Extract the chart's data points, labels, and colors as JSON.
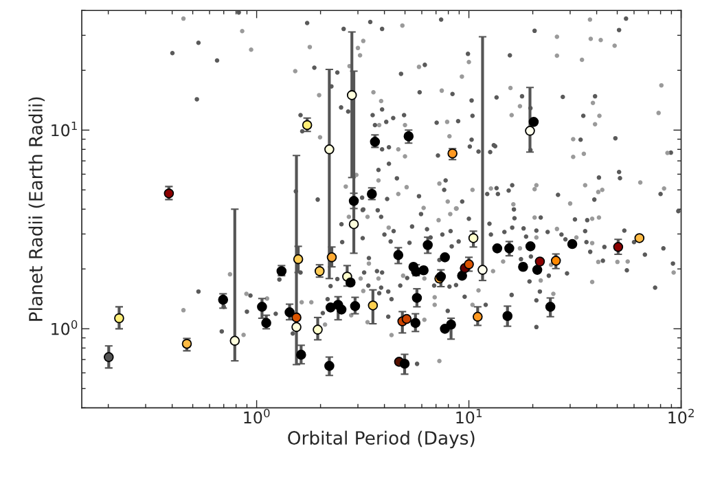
{
  "chart_data": {
    "type": "scatter",
    "xlabel": "Orbital Period (Days)",
    "ylabel": "Planet Radii (Earth Radii)",
    "log": "xy",
    "xlim": [
      0.15,
      100
    ],
    "ylim": [
      0.4,
      40
    ],
    "xticks": [
      {
        "value": 1,
        "label": "10$^{0}$"
      },
      {
        "value": 10,
        "label": "10$^{1}$"
      },
      {
        "value": 100,
        "label": "10$^{2}$"
      }
    ],
    "yticks": [
      {
        "value": 1,
        "label": "10$^{0}$"
      },
      {
        "value": 10,
        "label": "10$^{1}$"
      }
    ],
    "grid": false,
    "marker": "circle",
    "series": [
      {
        "color": "#5a5a5a",
        "x": [
          0.401,
          0.532,
          0.651,
          0.523,
          0.824,
          1.61,
          1.64,
          1.53,
          1.73,
          2.57,
          3.43,
          3.9,
          1.87,
          2.4,
          2.25,
          2.5,
          2.7,
          3.52,
          3.9,
          3.61,
          4.08,
          4.4,
          4.95,
          4.79,
          6.2,
          5.86,
          7.4,
          9.9,
          8.37,
          10.3,
          10.4,
          13.5,
          7.05,
          8.9,
          10.3,
          10.1,
          13.1,
          12.6,
          11.1,
          7.15,
          3.9,
          4.2,
          4.2,
          3.75,
          4.58,
          7.77,
          7.65,
          5.82,
          9.3,
          13.5,
          12.2,
          13.7,
          4.12,
          3.14,
          1.94,
          3.18,
          3.72,
          20.4,
          51,
          55,
          15.6,
          17.8,
          27.7,
          39.3,
          19.5,
          34.6,
          33.6,
          49,
          13.3,
          89.5,
          51,
          51.5,
          41,
          16.0,
          15.4,
          26.3,
          39,
          80,
          16.3,
          19.5,
          0.532,
          0.685,
          0.9,
          0.935,
          1.28,
          1.23,
          1.61,
          1.48,
          0.7,
          3.16,
          3.86,
          2.51,
          2.53,
          3.16,
          4.0,
          4.42,
          4.28,
          5.4,
          5.95,
          6.35,
          7.5,
          8.2,
          8.95,
          10.0,
          12.5,
          12.7,
          3.38,
          3.21,
          3.69,
          3.9,
          2.4,
          2.23,
          3.36,
          3.86,
          4.17,
          3.78,
          4.32,
          4.75,
          5.12,
          6.86,
          8.1,
          8.7,
          9.55,
          5.25,
          6.6,
          8.3,
          7.26,
          12.0,
          7.95,
          5.7,
          2.16,
          2.05,
          4.17,
          16.4,
          16.0,
          14.7,
          18.1,
          18.6,
          20.8,
          21.8,
          23.5,
          27.3,
          28.5,
          31.6,
          35.3,
          36.1,
          35.8,
          37.3,
          43.5,
          42.8,
          54,
          55.5,
          60,
          67.5,
          82.5,
          91.5,
          75.4,
          97,
          23.8,
          29,
          21.6,
          20.8,
          20.8,
          15.9,
          19.3,
          17.6,
          19.6
        ],
        "values": [
          24.4,
          27.5,
          22.4,
          14.3,
          39.1,
          11.9,
          9.86,
          4.92,
          34.6,
          32.3,
          35.0,
          32.3,
          20.6,
          19.5,
          16.6,
          13.0,
          12.4,
          11.9,
          12.7,
          10.6,
          11.0,
          11.5,
          11.9,
          19.2,
          21.3,
          15.5,
          36.0,
          24.2,
          15.2,
          14.1,
          11.8,
          14.6,
          10.9,
          11.1,
          8.95,
          8.26,
          8.4,
          7.75,
          7.8,
          7.45,
          8.0,
          8.2,
          6.77,
          6.3,
          5.72,
          5.58,
          5.0,
          4.65,
          4.37,
          5.1,
          4.77,
          4.77,
          4.5,
          4.57,
          4.47,
          3.99,
          3.95,
          31.6,
          31.9,
          36.4,
          23.8,
          14.8,
          14.7,
          14.8,
          12.9,
          11.8,
          8.95,
          9.1,
          8.3,
          7.7,
          6.15,
          5.73,
          5.77,
          5.28,
          4.96,
          4.72,
          4.47,
          4.77,
          3.99,
          7.94,
          1.54,
          0.97,
          1.22,
          1.47,
          1.77,
          1.19,
          1.92,
          0.946,
          1.29,
          3.96,
          3.66,
          3.36,
          2.73,
          2.86,
          2.98,
          3.1,
          2.75,
          3.27,
          3.78,
          3.17,
          2.98,
          3.1,
          2.75,
          3.58,
          3.38,
          2.98,
          2.27,
          1.92,
          1.95,
          1.92,
          1.78,
          1.64,
          1.65,
          1.61,
          1.54,
          1.51,
          1.41,
          1.65,
          1.8,
          1.65,
          1.63,
          1.66,
          1.45,
          2.71,
          2.88,
          2.6,
          2.22,
          1.32,
          1.23,
          0.666,
          1.41,
          1.2,
          1.15,
          3.6,
          3.23,
          3.07,
          3.2,
          2.91,
          3.12,
          3.63,
          3.07,
          2.98,
          2.82,
          3.55,
          3.1,
          3.52,
          2.73,
          2.44,
          2.58,
          2.2,
          3.12,
          1.97,
          2.73,
          2.36,
          2.54,
          2.13,
          1.61,
          3.91,
          1.85,
          1.9,
          1.54,
          1.39,
          1.02,
          1.48,
          1.73,
          2.24,
          2.31
        ]
      },
      {
        "color": "#9a9a9a",
        "x": [
          0.452,
          0.855,
          0.942,
          1.52,
          4.86,
          3.18,
          3.0,
          3.07,
          1.78,
          2.74,
          5.82,
          10.0,
          9.27,
          1.97,
          3.55,
          3.86,
          7.45,
          3.78,
          5.0,
          7.9,
          1.99,
          4.65,
          5.0,
          8.1,
          2.95,
          3.75,
          5.09,
          7.26,
          2.63,
          4.65,
          7.95,
          10.4,
          12.7,
          8.75,
          37.2,
          26.0,
          37.5,
          41.8,
          48.6,
          26.0,
          34.1,
          15.7,
          17.4,
          38.4,
          15.9,
          41.2,
          39.3,
          80.7,
          78.3,
          31.0,
          31.0,
          34.8,
          86.2,
          20.8,
          20.4,
          35.3,
          40.7,
          42.5,
          64.2,
          83.1,
          30.0,
          16.2,
          0.452,
          0.749,
          0.895,
          0.868,
          1.12,
          1.63,
          2.72,
          3.33,
          4.19,
          6.12,
          7.2,
          8.17,
          8.7,
          3.38,
          3.09,
          3.18,
          3.75,
          4.9,
          6.17,
          6.9,
          6.9,
          10.4,
          2.79,
          2.1,
          1.81,
          4.32,
          6.17,
          7.26,
          3.33,
          11.1,
          13.0,
          20.4,
          26.0,
          32.1,
          38.1,
          41.0,
          38.1,
          38.1,
          40.7,
          50.1,
          56.0,
          92.2,
          25.0,
          21.8,
          14.5,
          17.4,
          20.8,
          24.4
        ],
        "values": [
          36.4,
          31.5,
          25.4,
          19.8,
          33.6,
          28.1,
          25.9,
          23.8,
          26.2,
          21.0,
          20.8,
          22.0,
          18.6,
          15.0,
          15.5,
          14.0,
          15.8,
          10.6,
          10.6,
          11.0,
          9.2,
          8.0,
          7.38,
          9.31,
          5.95,
          5.58,
          5.16,
          5.38,
          5.2,
          4.77,
          4.37,
          5.0,
          5.08,
          4.03,
          36.0,
          29.5,
          28.8,
          28.4,
          26.6,
          23.7,
          22.6,
          16.3,
          13.2,
          13.7,
          11.9,
          11.8,
          10.7,
          16.8,
          12.2,
          9.0,
          7.33,
          7.6,
          7.68,
          5.28,
          5.04,
          5.28,
          4.88,
          5.0,
          5.45,
          5.08,
          4.27,
          4.23,
          1.24,
          1.88,
          1.5,
          0.931,
          1.42,
          1.36,
          3.66,
          3.66,
          3.23,
          4.06,
          3.52,
          3.78,
          4.03,
          2.13,
          1.79,
          1.55,
          1.79,
          1.85,
          1.79,
          1.44,
          1.32,
          1.32,
          1.17,
          1.05,
          1.36,
          0.93,
          1.11,
          0.688,
          1.08,
          1.56,
          1.95,
          3.63,
          3.18,
          2.88,
          3.58,
          3.63,
          2.7,
          1.72,
          2.17,
          2.17,
          2.18,
          1.92,
          1.5,
          1.75,
          2.18,
          2.54,
          2.88,
          2.1
        ]
      },
      {
        "x": [
          0.201,
          0.225,
          0.386,
          0.469,
          0.789,
          0.695,
          1.06,
          1.11,
          1.31,
          1.43,
          1.54,
          1.54,
          1.57,
          1.62,
          2.81,
          2.87,
          2.87,
          1.98,
          2.26,
          2.2,
          2.67,
          2.77,
          2.23,
          2.42,
          2.51,
          2.91,
          3.53,
          1.94,
          2.2,
          4.65,
          5.48,
          5.64,
          6.12,
          5.69,
          6.4,
          4.86,
          5.09,
          5.6,
          4.69,
          4.98,
          7.71,
          7.26,
          7.38,
          7.71,
          8.24,
          9.29,
          9.57,
          10.0,
          10.5,
          11.6,
          11.0,
          13.6,
          8.37,
          3.61,
          5.2,
          1.73,
          3.49,
          20.2,
          19.4,
          15.5,
          19.5,
          18.0,
          21.0,
          21.6,
          25.7,
          15.2,
          24.2,
          30.7,
          50.5,
          63.6
        ],
        "values": [
          0.72,
          1.13,
          4.8,
          0.84,
          0.87,
          1.4,
          1.29,
          1.07,
          1.95,
          1.21,
          1.14,
          1.02,
          2.24,
          0.74,
          15.0,
          4.4,
          3.36,
          1.95,
          2.29,
          8.0,
          1.83,
          1.71,
          1.28,
          1.32,
          1.25,
          1.3,
          1.31,
          0.99,
          0.65,
          2.35,
          2.05,
          1.94,
          1.97,
          1.43,
          2.64,
          1.09,
          1.12,
          1.07,
          0.682,
          0.667,
          2.29,
          1.79,
          1.83,
          1.0,
          1.05,
          1.85,
          2.02,
          2.11,
          2.86,
          1.98,
          1.15,
          2.54,
          7.63,
          8.73,
          9.31,
          10.6,
          4.77,
          11.0,
          9.92,
          2.54,
          2.6,
          2.05,
          1.98,
          2.18,
          2.2,
          1.16,
          1.29,
          2.67,
          2.58,
          2.86
        ],
        "colors": [
          "#555555",
          "#ffee77",
          "#8b0000",
          "#ffbb44",
          "#ffffdd",
          "#000000",
          "#000000",
          "#000000",
          "#000000",
          "#000000",
          "#dd5500",
          "#ffffdd",
          "#ffcc55",
          "#000000",
          "#ffffdd",
          "#000000",
          "#ffffdd",
          "#ffcc55",
          "#ffaa33",
          "#ffffdd",
          "#ffffcc",
          "#000000",
          "#000000",
          "#000000",
          "#000000",
          "#000000",
          "#ffd050",
          "#ffffcc",
          "#000000",
          "#000000",
          "#000000",
          "#000000",
          "#000000",
          "#000000",
          "#000000",
          "#cc4400",
          "#cc4400",
          "#000000",
          "#551100",
          "#000000",
          "#000000",
          "#ffaa33",
          "#000000",
          "#000000",
          "#000000",
          "#000000",
          "#660000",
          "#dd5500",
          "#ffffcc",
          "#ffffee",
          "#ff9922",
          "#000000",
          "#ff9922",
          "#000000",
          "#000000",
          "#ffee77",
          "#000000",
          "#000000",
          "#ffffee",
          "#000000",
          "#000000",
          "#000000",
          "#000000",
          "#8b0000",
          "#ff8800",
          "#000000",
          "#000000",
          "#000000",
          "#8b0000",
          "#ffbb44"
        ],
        "errors": [
          [
            0.635,
            0.82
          ],
          [
            1.0,
            1.29
          ],
          [
            4.47,
            5.2
          ],
          [
            0.775,
            0.894
          ],
          [
            0.69,
            4.0
          ],
          [
            1.27,
            1.5
          ],
          [
            1.13,
            1.42
          ],
          [
            1.0,
            1.17
          ],
          [
            1.85,
            2.08
          ],
          [
            1.11,
            1.33
          ],
          null,
          [
            0.66,
            7.45
          ],
          [
            1.92,
            2.6
          ],
          [
            0.667,
            0.826
          ],
          [
            5.77,
            31.2
          ],
          [
            4.03,
            4.81
          ],
          [
            2.4,
            19.8
          ],
          [
            1.82,
            2.1
          ],
          [
            2.05,
            2.58
          ],
          [
            1.79,
            20.2
          ],
          [
            1.64,
            2.08
          ],
          null,
          null,
          [
            1.11,
            1.45
          ],
          null,
          [
            1.19,
            1.44
          ],
          [
            1.06,
            1.57
          ],
          [
            0.88,
            1.14
          ],
          [
            0.582,
            0.72
          ],
          [
            2.13,
            2.56
          ],
          null,
          [
            1.85,
            2.1
          ],
          null,
          [
            1.29,
            1.59
          ],
          [
            2.4,
            2.89
          ],
          [
            0.953,
            1.22
          ],
          null,
          [
            0.969,
            1.19
          ],
          null,
          [
            0.591,
            0.744
          ],
          null,
          null,
          [
            1.63,
            1.98
          ],
          null,
          [
            0.887,
            1.13
          ],
          null,
          null,
          [
            1.95,
            2.29
          ],
          [
            2.58,
            3.1
          ],
          [
            1.75,
            29.5
          ],
          [
            1.04,
            1.29
          ],
          null,
          [
            7.1,
            8.07
          ],
          [
            8.19,
            9.46
          ],
          [
            8.6,
            10.0
          ],
          [
            9.84,
            11.5
          ],
          [
            4.47,
            5.12
          ],
          null,
          [
            7.75,
            16.4
          ],
          [
            2.33,
            2.75
          ],
          null,
          null,
          null,
          null,
          [
            2.01,
            2.38
          ],
          [
            1.03,
            1.3
          ],
          [
            1.15,
            1.43
          ],
          null,
          [
            2.37,
            2.82
          ],
          null
        ]
      }
    ]
  }
}
